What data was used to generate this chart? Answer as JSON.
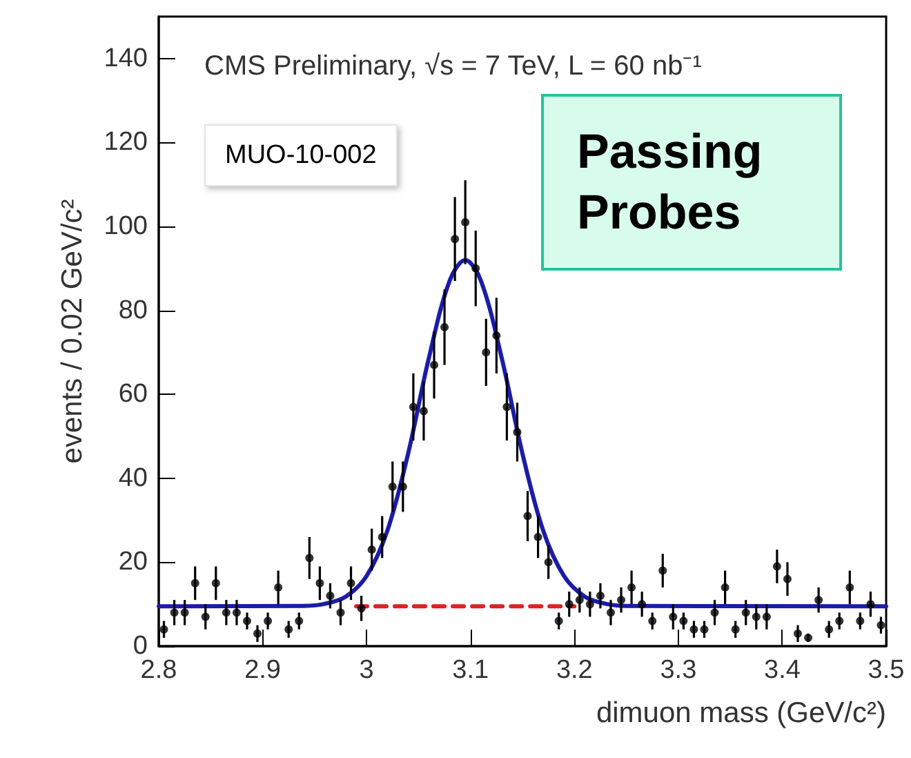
{
  "chart_data": {
    "type": "scatter",
    "xlabel": "dimuon mass (GeV/c²)",
    "ylabel": "events / 0.02 GeV/c²",
    "annotations": [
      "CMS Preliminary, √s = 7 TeV, L = 60 nb⁻¹",
      "MUO-10-002",
      "Passing Probes"
    ],
    "xlim": [
      2.8,
      3.5
    ],
    "xticks": [
      2.8,
      2.9,
      3,
      3.1,
      3.2,
      3.3,
      3.4,
      3.5
    ],
    "ylim": [
      0,
      150
    ],
    "yticks": [
      0,
      20,
      40,
      60,
      80,
      100,
      120,
      140
    ],
    "grid": false,
    "marker": "circle",
    "series": [
      {
        "color": "#000000",
        "x": [
          2.805,
          2.815,
          2.825,
          2.835,
          2.845,
          2.855,
          2.865,
          2.875,
          2.885,
          2.895,
          2.905,
          2.915,
          2.925,
          2.935,
          2.945,
          2.955,
          2.965,
          2.975,
          2.985,
          2.995,
          3.005,
          3.015,
          3.025,
          3.035,
          3.045,
          3.055,
          3.065,
          3.075,
          3.085,
          3.095,
          3.105,
          3.115,
          3.125,
          3.135,
          3.145,
          3.155,
          3.165,
          3.175,
          3.185,
          3.195,
          3.205,
          3.215,
          3.225,
          3.235,
          3.245,
          3.255,
          3.265,
          3.275,
          3.285,
          3.295,
          3.305,
          3.315,
          3.325,
          3.335,
          3.345,
          3.355,
          3.365,
          3.375,
          3.385,
          3.395,
          3.405,
          3.415,
          3.425,
          3.435,
          3.445,
          3.455,
          3.465,
          3.475,
          3.485,
          3.495
        ],
        "values": [
          4,
          8,
          8,
          15,
          7,
          15,
          8,
          8,
          6,
          3,
          6,
          14,
          4,
          6,
          21,
          15,
          12,
          8,
          15,
          9,
          23,
          26,
          38,
          38,
          57,
          56,
          67,
          76,
          97,
          101,
          90,
          70,
          74,
          57,
          51,
          31,
          26,
          20,
          6,
          10,
          11,
          10,
          12,
          8,
          11,
          14,
          10,
          6,
          18,
          7,
          6,
          4,
          4,
          8,
          14,
          4,
          8,
          7,
          7,
          19,
          16,
          3,
          2,
          11,
          4,
          6,
          14,
          6,
          10,
          5
        ],
        "errors": [
          2,
          3,
          3,
          4,
          3,
          4,
          3,
          3,
          2,
          2,
          2,
          4,
          2,
          2,
          5,
          4,
          3,
          3,
          4,
          3,
          5,
          5,
          6,
          6,
          8,
          7,
          8,
          9,
          10,
          10,
          9,
          8,
          9,
          8,
          7,
          6,
          5,
          4,
          2,
          3,
          3,
          3,
          3,
          3,
          3,
          4,
          3,
          2,
          4,
          3,
          2,
          2,
          2,
          3,
          4,
          2,
          3,
          3,
          3,
          4,
          4,
          2,
          1,
          3,
          2,
          2,
          4,
          2,
          3,
          2
        ]
      },
      {
        "type": "line",
        "color": "#1c1ca8",
        "marker": "none",
        "line_style": "solid",
        "x": [
          2.8,
          2.94,
          2.96,
          2.98,
          3.0,
          3.02,
          3.04,
          3.06,
          3.08,
          3.095,
          3.11,
          3.13,
          3.15,
          3.17,
          3.19,
          3.21,
          3.23,
          3.25,
          3.5
        ],
        "values": [
          9.5,
          9.6,
          10.1,
          11.8,
          16.7,
          27.5,
          45.9,
          68.7,
          87.1,
          92,
          87.1,
          68.7,
          45.9,
          27.5,
          16.7,
          11.8,
          10.1,
          9.6,
          9.5
        ]
      },
      {
        "type": "line",
        "color": "#dd2222",
        "marker": "none",
        "line_style": "dashed",
        "x": [
          2.99,
          3.2
        ],
        "values": [
          9.5,
          9.5
        ]
      }
    ]
  }
}
